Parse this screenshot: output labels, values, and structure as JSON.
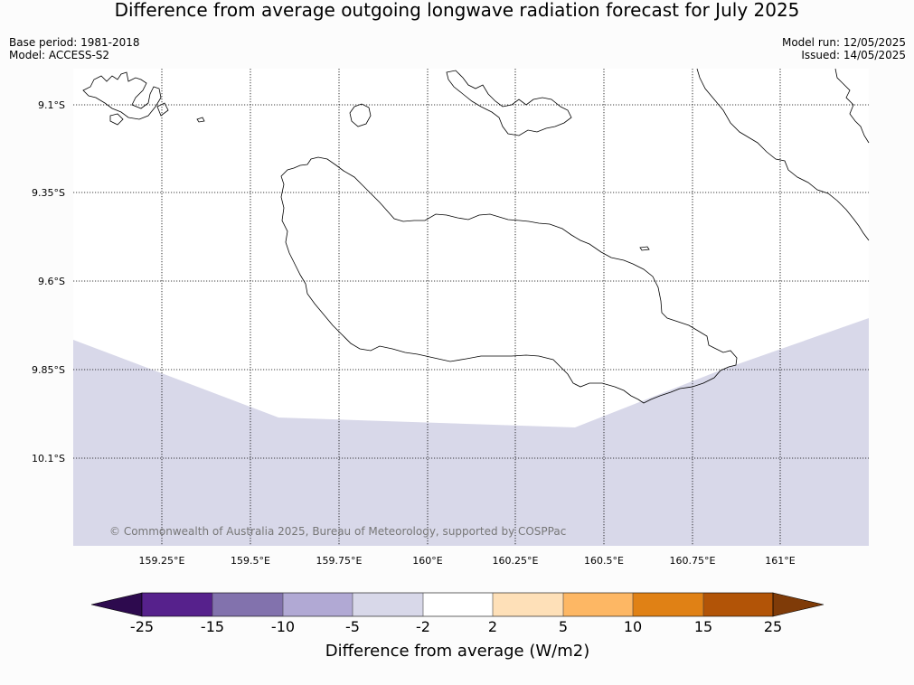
{
  "title": "Difference from average outgoing longwave radiation forecast for July 2025",
  "base_period": "Base period: 1981-2018",
  "model": "Model: ACCESS-S2",
  "model_run": "Model run: 12/05/2025",
  "issued": "Issued: 14/05/2025",
  "copyright": "© Commonwealth of Australia 2025, Bureau of Meteorology, supported by COSPPac",
  "map": {
    "lat_labels": [
      "9.1°S",
      "9.35°S",
      "9.6°S",
      "9.85°S",
      "10.1°S"
    ],
    "lon_labels": [
      "159.25°E",
      "159.5°E",
      "159.75°E",
      "160°E",
      "160.25°E",
      "160.5°E",
      "160.75°E",
      "161°E"
    ],
    "shaded_category": "-5 to -2",
    "shaded_color": "#d8d8e9"
  },
  "colorbar": {
    "title": "Difference from average (W/m2)",
    "tick_labels": [
      "-25",
      "-15",
      "-10",
      "-5",
      "-2",
      "2",
      "5",
      "10",
      "15",
      "25"
    ],
    "colors": [
      "#2d0a4e",
      "#56218c",
      "#8272ad",
      "#b1a9d4",
      "#d8d8e9",
      "#ffffff",
      "#fee0b8",
      "#fdb764",
      "#e08115",
      "#b25407",
      "#7f3b08"
    ]
  }
}
